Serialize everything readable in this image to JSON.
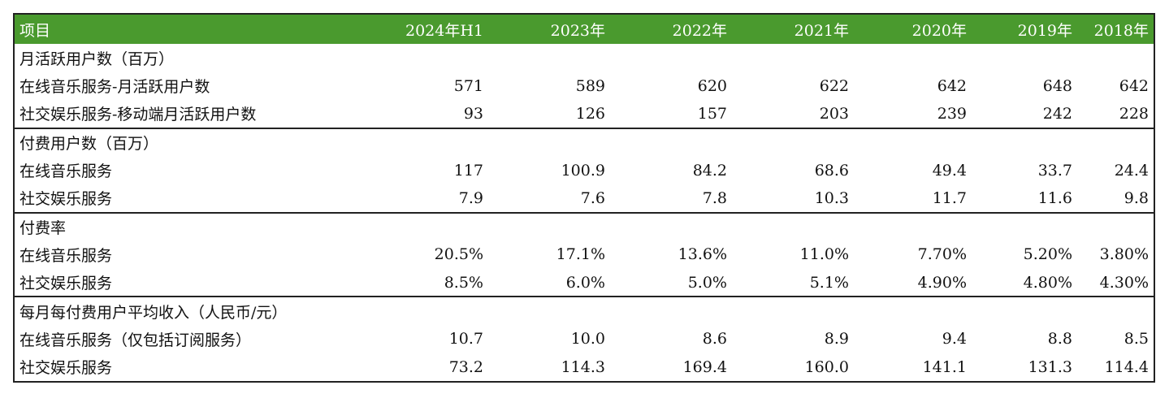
{
  "table": {
    "header": [
      "项目",
      "2024年H1",
      "2023年",
      "2022年",
      "2021年",
      "2020年",
      "2019年",
      "2018年"
    ],
    "groups": [
      {
        "title": "月活跃用户数（百万）",
        "rows": [
          {
            "label": "在线音乐服务-月活跃用户数",
            "values": [
              "571",
              "589",
              "620",
              "622",
              "642",
              "648",
              "642"
            ]
          },
          {
            "label": "社交娱乐服务-移动端月活跃用户数",
            "values": [
              "93",
              "126",
              "157",
              "203",
              "239",
              "242",
              "228"
            ]
          }
        ]
      },
      {
        "title": "付费用户数（百万）",
        "rows": [
          {
            "label": "在线音乐服务",
            "values": [
              "117",
              "100.9",
              "84.2",
              "68.6",
              "49.4",
              "33.7",
              "24.4"
            ]
          },
          {
            "label": "社交娱乐服务",
            "values": [
              "7.9",
              "7.6",
              "7.8",
              "10.3",
              "11.7",
              "11.6",
              "9.8"
            ]
          }
        ]
      },
      {
        "title": "付费率",
        "rows": [
          {
            "label": "在线音乐服务",
            "values": [
              "20.5%",
              "17.1%",
              "13.6%",
              "11.0%",
              "7.70%",
              "5.20%",
              "3.80%"
            ]
          },
          {
            "label": "社交娱乐服务",
            "values": [
              "8.5%",
              "6.0%",
              "5.0%",
              "5.1%",
              "4.90%",
              "4.80%",
              "4.30%"
            ]
          }
        ]
      },
      {
        "title": "每月每付费用户平均收入（人民币/元）",
        "rows": [
          {
            "label": "在线音乐服务（仅包括订阅服务）",
            "values": [
              "10.7",
              "10.0",
              "8.6",
              "8.9",
              "9.4",
              "8.8",
              "8.5"
            ]
          },
          {
            "label": "社交娱乐服务",
            "values": [
              "73.2",
              "114.3",
              "169.4",
              "160.0",
              "141.1",
              "131.3",
              "114.4"
            ]
          }
        ]
      }
    ]
  }
}
